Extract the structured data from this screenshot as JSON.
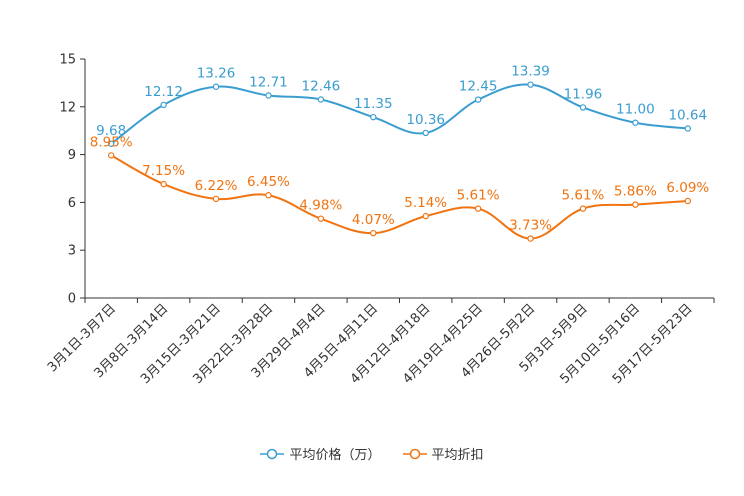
{
  "colors": {
    "series1": "#3a9dd0",
    "series2": "#f07412",
    "axis": "#333333"
  },
  "chart_data": {
    "type": "line",
    "categories": [
      "3月1日-3月7日",
      "3月8日-3月14日",
      "3月15日-3月21日",
      "3月22日-3月28日",
      "3月29日-4月4日",
      "4月5日-4月11日",
      "4月12日-4月18日",
      "4月19日-4月25日",
      "4月26日-5月2日",
      "5月3日-5月9日",
      "5月10日-5月16日",
      "5月17日-5月23日"
    ],
    "yticks": [
      "0",
      "3",
      "6",
      "9",
      "12",
      "15"
    ],
    "ylim": [
      0,
      15
    ],
    "legend_position": "bottom",
    "series": [
      {
        "name": "平均价格（万）",
        "values": [
          9.68,
          12.12,
          13.26,
          12.71,
          12.46,
          11.35,
          10.36,
          12.45,
          13.39,
          11.96,
          11.0,
          10.64
        ],
        "labels": [
          "9.68",
          "12.12",
          "13.26",
          "12.71",
          "12.46",
          "11.35",
          "10.36",
          "12.45",
          "13.39",
          "11.96",
          "11.00",
          "10.64"
        ]
      },
      {
        "name": "平均折扣",
        "values": [
          8.95,
          7.15,
          6.22,
          6.45,
          4.98,
          4.07,
          5.14,
          5.61,
          3.73,
          5.61,
          5.86,
          6.09
        ],
        "labels": [
          "8.95%",
          "7.15%",
          "6.22%",
          "6.45%",
          "4.98%",
          "4.07%",
          "5.14%",
          "5.61%",
          "3.73%",
          "5.61%",
          "5.86%",
          "6.09%"
        ]
      }
    ]
  }
}
